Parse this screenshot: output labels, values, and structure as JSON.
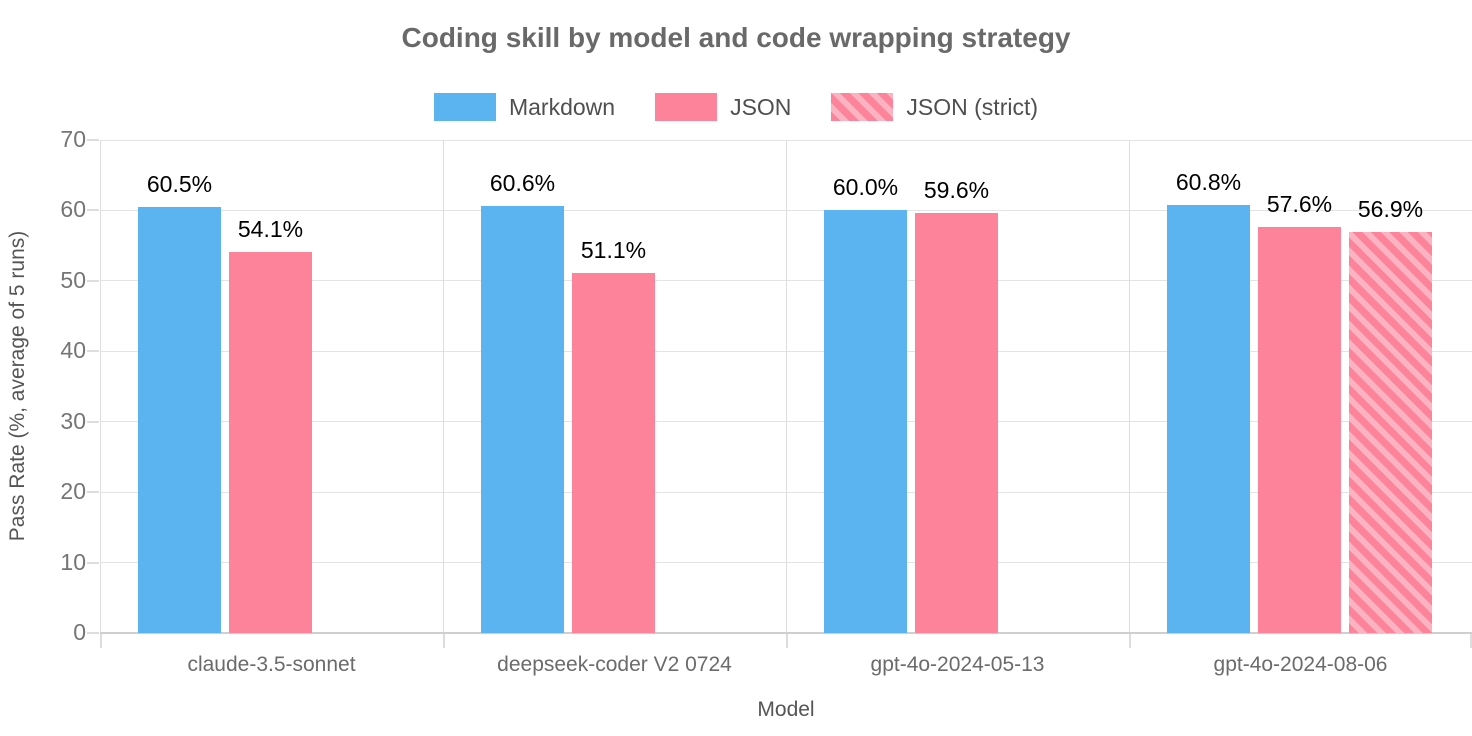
{
  "title": "Coding skill by model and code wrapping strategy",
  "chart_data": {
    "type": "bar",
    "title": "Coding skill by model and code wrapping strategy",
    "xlabel": "Model",
    "ylabel": "Pass Rate (%, average of 5 runs)",
    "ylim": [
      0,
      70
    ],
    "yticks": [
      0,
      10,
      20,
      30,
      40,
      50,
      60,
      70
    ],
    "grid": true,
    "legend_position": "top",
    "value_label_suffix": "%",
    "categories": [
      "claude-3.5-sonnet",
      "deepseek-coder V2 0724",
      "gpt-4o-2024-05-13",
      "gpt-4o-2024-08-06"
    ],
    "series": [
      {
        "name": "Markdown",
        "pattern": "solid",
        "color_key": "markdown_blue",
        "values": [
          60.5,
          60.6,
          60.0,
          60.8
        ]
      },
      {
        "name": "JSON",
        "pattern": "solid",
        "color_key": "json_pink",
        "values": [
          54.1,
          51.1,
          59.6,
          57.6
        ]
      },
      {
        "name": "JSON (strict)",
        "pattern": "diagonal-stripes",
        "color_key": "json_pink",
        "stripe_color_key": "json_stripe_light",
        "values": [
          null,
          null,
          null,
          56.9
        ]
      }
    ],
    "value_labels": [
      [
        "60.5%",
        "60.6%",
        "60.0%",
        "60.8%"
      ],
      [
        "54.1%",
        "51.1%",
        "59.6%",
        "57.6%"
      ],
      [
        null,
        null,
        null,
        "56.9%"
      ]
    ]
  },
  "colors": {
    "markdown_blue": "#5BB4EF",
    "json_pink": "#FC8399",
    "json_stripe_light": "#FBB3C2",
    "grid": "#E3E3E3",
    "axis": "#CFCFCF",
    "title_text": "#696969",
    "value_text": "#000000",
    "tick_text": "#757575"
  }
}
